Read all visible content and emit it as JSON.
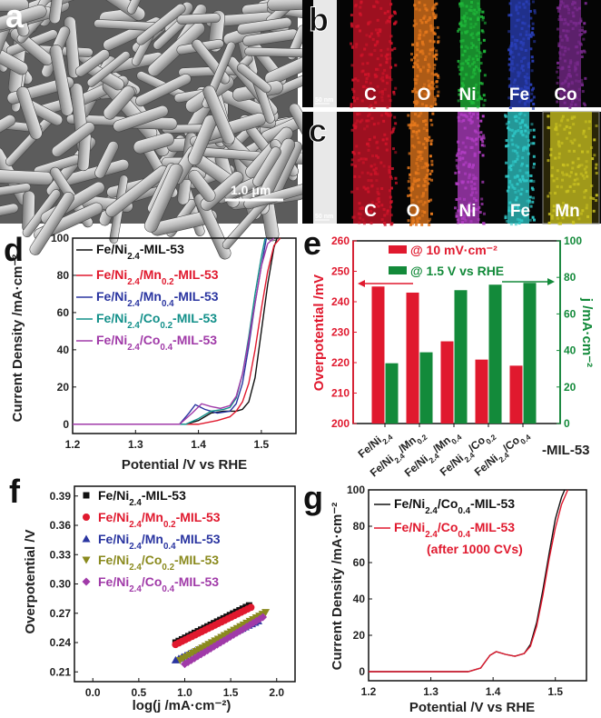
{
  "panel_letters": {
    "a": "a",
    "b": "b",
    "c": "c",
    "d": "d",
    "e": "e",
    "f": "f",
    "g": "g"
  },
  "panel_a": {
    "scale_bar": "1.0 μm"
  },
  "panel_b": {
    "scale_bar": "50 nm",
    "elements": [
      "C",
      "O",
      "Ni",
      "Fe",
      "Co"
    ],
    "colors": [
      "#d0142a",
      "#e6781c",
      "#1fb83a",
      "#2a3fb8",
      "#7a2a8e"
    ]
  },
  "panel_c": {
    "scale_bar": "50 nm",
    "elements": [
      "C",
      "O",
      "Ni",
      "Fe",
      "Mn"
    ],
    "colors": [
      "#d0142a",
      "#e6781c",
      "#b23ec4",
      "#2fc8c8",
      "#c8c020"
    ]
  },
  "chart_data": [
    {
      "id": "d",
      "type": "line",
      "xlabel": "Potential /V vs RHE",
      "ylabel": "Current Density /mA·cm⁻²",
      "xlim": [
        1.2,
        1.555
      ],
      "ylim": [
        -5,
        100
      ],
      "xticks": [
        1.2,
        1.3,
        1.4,
        1.5
      ],
      "xtick_labels": [
        "1.2",
        "1.3",
        "1.4",
        "1.5"
      ],
      "yticks": [
        0,
        20,
        40,
        60,
        80,
        100
      ],
      "ytick_labels": [
        "0",
        "20",
        "40",
        "60",
        "80",
        "100"
      ],
      "legend": "top-left",
      "series": [
        {
          "name": [
            "Fe/Ni",
            "2.4",
            "-MIL-53"
          ],
          "color": "#111111",
          "points": [
            [
              1.2,
              0
            ],
            [
              1.38,
              0
            ],
            [
              1.4,
              2
            ],
            [
              1.42,
              6
            ],
            [
              1.44,
              7
            ],
            [
              1.46,
              7
            ],
            [
              1.47,
              8
            ],
            [
              1.48,
              12
            ],
            [
              1.49,
              25
            ],
            [
              1.5,
              50
            ],
            [
              1.51,
              75
            ],
            [
              1.52,
              95
            ],
            [
              1.525,
              100
            ]
          ]
        },
        {
          "name": [
            "Fe/Ni",
            "2.4",
            "/Mn",
            "0.2",
            "-MIL-53"
          ],
          "color": "#e0192e",
          "points": [
            [
              1.2,
              0
            ],
            [
              1.4,
              0
            ],
            [
              1.43,
              2
            ],
            [
              1.45,
              4
            ],
            [
              1.46,
              7
            ],
            [
              1.47,
              12
            ],
            [
              1.48,
              22
            ],
            [
              1.49,
              40
            ],
            [
              1.5,
              62
            ],
            [
              1.51,
              82
            ],
            [
              1.52,
              96
            ],
            [
              1.53,
              100
            ]
          ]
        },
        {
          "name": [
            "Fe/Ni",
            "2.4",
            "/Mn",
            "0.4",
            "-MIL-53"
          ],
          "color": "#2a35a0",
          "points": [
            [
              1.2,
              0
            ],
            [
              1.37,
              0
            ],
            [
              1.385,
              6
            ],
            [
              1.395,
              10.5
            ],
            [
              1.41,
              8
            ],
            [
              1.43,
              6
            ],
            [
              1.45,
              7
            ],
            [
              1.46,
              11
            ],
            [
              1.47,
              22
            ],
            [
              1.48,
              42
            ],
            [
              1.49,
              65
            ],
            [
              1.5,
              85
            ],
            [
              1.508,
              100
            ]
          ]
        },
        {
          "name": [
            "Fe/Ni",
            "2.4",
            "/Co",
            "0.2",
            "-MIL-53"
          ],
          "color": "#13908a",
          "points": [
            [
              1.2,
              0
            ],
            [
              1.38,
              0
            ],
            [
              1.4,
              3
            ],
            [
              1.42,
              7
            ],
            [
              1.44,
              8
            ],
            [
              1.45,
              9
            ],
            [
              1.46,
              14
            ],
            [
              1.47,
              27
            ],
            [
              1.48,
              47
            ],
            [
              1.49,
              70
            ],
            [
              1.5,
              90
            ],
            [
              1.506,
              100
            ]
          ]
        },
        {
          "name": [
            "Fe/Ni",
            "2.4",
            "/Co",
            "0.4",
            "-MIL-53"
          ],
          "color": "#a03aa8",
          "points": [
            [
              1.2,
              0
            ],
            [
              1.37,
              0
            ],
            [
              1.39,
              6
            ],
            [
              1.405,
              11
            ],
            [
              1.42,
              9.5
            ],
            [
              1.435,
              8.5
            ],
            [
              1.45,
              10
            ],
            [
              1.46,
              15
            ],
            [
              1.47,
              27
            ],
            [
              1.48,
              45
            ],
            [
              1.49,
              65
            ],
            [
              1.5,
              85
            ],
            [
              1.51,
              97
            ],
            [
              1.52,
              100
            ]
          ]
        }
      ]
    },
    {
      "id": "e",
      "type": "bar",
      "categories": [
        [
          "Fe/Ni",
          "2.4"
        ],
        [
          "Fe/Ni",
          "2.4",
          "/Mn",
          "0.2"
        ],
        [
          "Fe/Ni",
          "2.4",
          "/Mn",
          "0.4"
        ],
        [
          "Fe/Ni",
          "2.4",
          "/Co",
          "0.2"
        ],
        [
          "Fe/Ni",
          "2.4",
          "/Co",
          "0.4"
        ]
      ],
      "category_suffix": "-MIL-53",
      "ylabel_left": "Overpotential /mV",
      "ylabel_right": "j /mA·cm⁻²",
      "ylim_left": [
        200,
        260
      ],
      "ylim_right": [
        0,
        100
      ],
      "yticks_left": [
        200,
        210,
        220,
        230,
        240,
        250,
        260
      ],
      "yticks_right": [
        0,
        20,
        40,
        60,
        80,
        100
      ],
      "series": [
        {
          "name": "@ 10 mV·cm⁻²",
          "axis": "left",
          "color": "#e0192e",
          "values": [
            245,
            243,
            227,
            221,
            219
          ]
        },
        {
          "name": "@ 1.5 V vs RHE",
          "axis": "right",
          "color": "#138a3a",
          "values": [
            33,
            39,
            73,
            76,
            77
          ]
        }
      ],
      "legend": "top-left"
    },
    {
      "id": "f",
      "type": "scatter",
      "xlabel": "log(j /mA·cm⁻²)",
      "ylabel": "Overpotential /V",
      "xlim": [
        -0.2,
        2.2
      ],
      "ylim": [
        0.2,
        0.4
      ],
      "xticks": [
        0,
        0.5,
        1,
        1.5,
        2
      ],
      "xtick_labels": [
        "0.0",
        "0.5",
        "1.0",
        "1.5",
        "2.0"
      ],
      "yticks": [
        0.21,
        0.24,
        0.27,
        0.3,
        0.33,
        0.36,
        0.39
      ],
      "ytick_labels": [
        "0.21",
        "0.24",
        "0.27",
        "0.30",
        "0.33",
        "0.36",
        "0.39"
      ],
      "legend": "top-left",
      "series": [
        {
          "name": [
            "Fe/Ni",
            "2.4",
            "-MIL-53"
          ],
          "color": "#111111",
          "marker": "square",
          "x_range": [
            0.9,
            1.7
          ],
          "y_range": [
            0.24,
            0.278
          ]
        },
        {
          "name": [
            "Fe/Ni",
            "2.4",
            "/Mn",
            "0.2",
            "-MIL-53"
          ],
          "color": "#e0192e",
          "marker": "circle",
          "x_range": [
            0.9,
            1.72
          ],
          "y_range": [
            0.238,
            0.276
          ]
        },
        {
          "name": [
            "Fe/Ni",
            "2.4",
            "/Mn",
            "0.4",
            "-MIL-53"
          ],
          "color": "#2a35a0",
          "marker": "triangle-up",
          "x_range": [
            0.9,
            1.8
          ],
          "y_range": [
            0.222,
            0.262
          ]
        },
        {
          "name": [
            "Fe/Ni",
            "2.4",
            "/Co",
            "0.2",
            "-MIL-53"
          ],
          "color": "#8a8a1e",
          "marker": "triangle-down",
          "x_range": [
            0.95,
            1.88
          ],
          "y_range": [
            0.222,
            0.271
          ]
        },
        {
          "name": [
            "Fe/Ni",
            "2.4",
            "/Co",
            "0.4",
            "-MIL-53"
          ],
          "color": "#a03aa8",
          "marker": "diamond",
          "x_range": [
            1.0,
            1.85
          ],
          "y_range": [
            0.218,
            0.266
          ]
        }
      ]
    },
    {
      "id": "g",
      "type": "line",
      "xlabel": "Potential /V vs RHE",
      "ylabel": "Current Density /mA·cm⁻²",
      "xlim": [
        1.2,
        1.55
      ],
      "ylim": [
        -5,
        100
      ],
      "xticks": [
        1.2,
        1.3,
        1.4,
        1.5
      ],
      "xtick_labels": [
        "1.2",
        "1.3",
        "1.4",
        "1.5"
      ],
      "yticks": [
        0,
        20,
        40,
        60,
        80,
        100
      ],
      "ytick_labels": [
        "0",
        "20",
        "40",
        "60",
        "80",
        "100"
      ],
      "legend": "top-left",
      "series": [
        {
          "name": [
            "Fe/Ni",
            "2.4",
            "/Co",
            "0.4",
            "-MIL-53"
          ],
          "color": "#111111",
          "points": [
            [
              1.2,
              0
            ],
            [
              1.36,
              0
            ],
            [
              1.38,
              2
            ],
            [
              1.395,
              9
            ],
            [
              1.405,
              11
            ],
            [
              1.42,
              9.5
            ],
            [
              1.435,
              8.5
            ],
            [
              1.45,
              10
            ],
            [
              1.46,
              15
            ],
            [
              1.47,
              27
            ],
            [
              1.48,
              45
            ],
            [
              1.49,
              65
            ],
            [
              1.5,
              84
            ],
            [
              1.51,
              96
            ],
            [
              1.515,
              100
            ]
          ]
        },
        {
          "name": [
            "Fe/Ni",
            "2.4",
            "/Co",
            "0.4",
            "-MIL-53"
          ],
          "name_line2": "(after 1000 CVs)",
          "color": "#e0192e",
          "points": [
            [
              1.2,
              0
            ],
            [
              1.36,
              0
            ],
            [
              1.38,
              2
            ],
            [
              1.395,
              9
            ],
            [
              1.405,
              11
            ],
            [
              1.42,
              9.5
            ],
            [
              1.435,
              8.5
            ],
            [
              1.45,
              10
            ],
            [
              1.46,
              14
            ],
            [
              1.47,
              25
            ],
            [
              1.48,
              42
            ],
            [
              1.49,
              62
            ],
            [
              1.5,
              79
            ],
            [
              1.51,
              92
            ],
            [
              1.52,
              100
            ]
          ]
        }
      ]
    }
  ]
}
